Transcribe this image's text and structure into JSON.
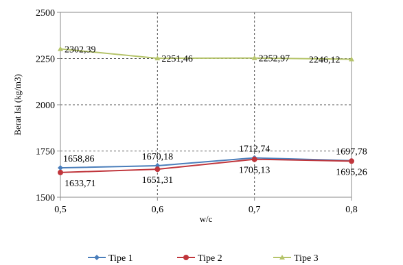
{
  "chart_data": {
    "type": "line",
    "x": [
      "0,5",
      "0,6",
      "0,7",
      "0,8"
    ],
    "xlabel": "w/c",
    "ylabel": "Berat Isi (kg/m3)",
    "ylim": [
      1500,
      2500
    ],
    "yticks": [
      1500,
      1750,
      2000,
      2250,
      2500
    ],
    "yticks_labels": [
      "1500",
      "1750",
      "2000",
      "2250",
      "2500"
    ],
    "grid": true,
    "legend_position": "bottom",
    "series": [
      {
        "name": "Tipe 1",
        "color": "#4a7ebb",
        "marker": "diamond",
        "values": [
          1658.86,
          1670.18,
          1712.74,
          1697.78
        ],
        "labels": [
          "1658,86",
          "1670,18",
          "1712,74",
          "1697,78"
        ]
      },
      {
        "name": "Tipe 2",
        "color": "#c0363c",
        "marker": "circle",
        "values": [
          1633.71,
          1651.31,
          1705.13,
          1695.26
        ],
        "labels": [
          "1633,71",
          "1651,31",
          "1705,13",
          "1695,26"
        ]
      },
      {
        "name": "Tipe 3",
        "color": "#b5c46a",
        "marker": "triangle",
        "values": [
          2302.39,
          2251.46,
          2252.97,
          2246.12
        ],
        "labels": [
          "2302,39",
          "2251,46",
          "2252,97",
          "2246,12"
        ]
      }
    ]
  }
}
